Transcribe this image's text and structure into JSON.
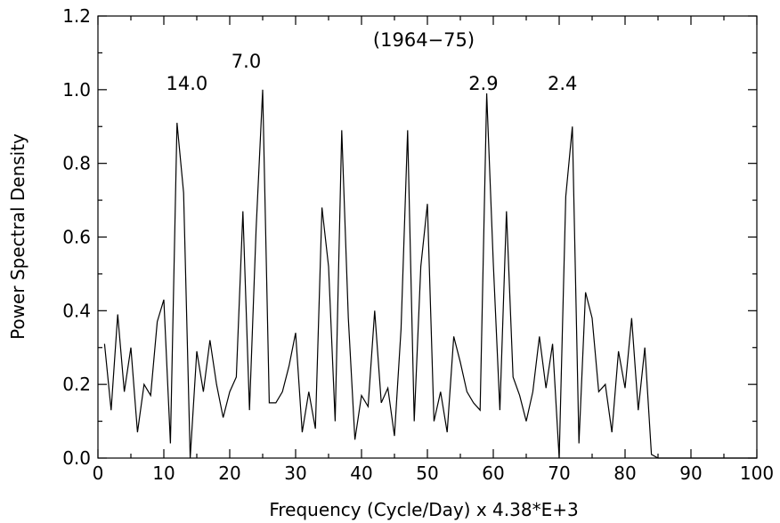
{
  "chart_data": {
    "type": "line",
    "title": "(1964−75)",
    "xlabel": "Frequency (Cycle/Day) x 4.38*E+3",
    "ylabel": "Power Spectral Density",
    "xlim": [
      0,
      100
    ],
    "ylim": [
      0,
      1.2
    ],
    "xticks": [
      "0",
      "10",
      "20",
      "30",
      "40",
      "50",
      "60",
      "70",
      "80",
      "90",
      "100"
    ],
    "yticks": [
      "0.0",
      "0.2",
      "0.4",
      "0.6",
      "0.8",
      "1.0",
      "1.2"
    ],
    "grid": false,
    "series": [
      {
        "x": [
          1,
          2,
          3,
          4,
          5,
          6,
          7,
          8,
          9,
          10,
          11,
          12,
          13,
          14,
          15,
          16,
          17,
          18,
          19,
          20,
          21,
          22,
          23,
          24,
          25,
          26,
          27,
          28,
          29,
          30,
          31,
          32,
          33,
          34,
          35,
          36,
          37,
          38,
          39,
          40,
          41,
          42,
          43,
          44,
          45,
          46,
          47,
          48,
          49,
          50,
          51,
          52,
          53,
          54,
          55,
          56,
          57,
          58,
          59,
          60,
          61,
          62,
          63,
          64,
          65,
          66,
          67,
          68,
          69,
          70,
          71,
          72,
          73,
          74,
          75,
          76,
          77,
          78,
          79,
          80,
          81,
          82,
          83,
          84,
          85,
          86,
          87,
          88,
          89,
          90,
          91,
          92,
          93,
          94,
          95,
          96,
          97,
          98,
          99,
          100
        ],
        "y": [
          0.31,
          0.13,
          0.39,
          0.18,
          0.3,
          0.07,
          0.2,
          0.17,
          0.37,
          0.43,
          0.04,
          0.91,
          0.72,
          0.0,
          0.29,
          0.18,
          0.32,
          0.2,
          0.11,
          0.18,
          0.22,
          0.67,
          0.13,
          0.62,
          1.0,
          0.15,
          0.15,
          0.18,
          0.25,
          0.34,
          0.07,
          0.18,
          0.08,
          0.68,
          0.52,
          0.1,
          0.89,
          0.38,
          0.05,
          0.17,
          0.14,
          0.4,
          0.15,
          0.19,
          0.06,
          0.35,
          0.89,
          0.1,
          0.52,
          0.69,
          0.1,
          0.18,
          0.07,
          0.33,
          0.26,
          0.18,
          0.15,
          0.13,
          0.99,
          0.53,
          0.13,
          0.67,
          0.22,
          0.17,
          0.1,
          0.18,
          0.33,
          0.19,
          0.31,
          0.0,
          0.71,
          0.9,
          0.04,
          0.45,
          0.38,
          0.18,
          0.2,
          0.07,
          0.29,
          0.19,
          0.38,
          0.13,
          0.3,
          0.01,
          0.0,
          0.0,
          0.0,
          0.0,
          0.0,
          0.0,
          0.0,
          0.0,
          0.0,
          0.0,
          0.0,
          0.0,
          0.0,
          0.0,
          0.0,
          0.0
        ]
      }
    ],
    "annotations": [
      {
        "text": "14.0",
        "x": 13.5,
        "y": 1.0
      },
      {
        "text": "7.0",
        "x": 22.5,
        "y": 1.06
      },
      {
        "text": "2.9",
        "x": 58.5,
        "y": 1.0
      },
      {
        "text": "2.4",
        "x": 70.5,
        "y": 1.0
      }
    ]
  }
}
